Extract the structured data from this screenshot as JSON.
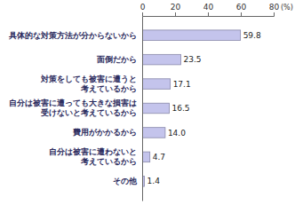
{
  "chart_data": {
    "type": "bar",
    "orientation": "horizontal",
    "categories": [
      "具体的な対策方法が分からないから",
      "面倒だから",
      "対策をしても被害に遭うと\n考えているから",
      "自分は被害に遭っても大きな損害は\n受けないと考えているから",
      "費用がかかるから",
      "自分は被害に遭わないと\n考えているから",
      "その他"
    ],
    "values": [
      59.8,
      23.5,
      17.1,
      16.5,
      14.0,
      4.7,
      1.4
    ],
    "value_labels": [
      "59.8",
      "23.5",
      "17.1",
      "16.5",
      "14.0",
      "4.7",
      "1.4"
    ],
    "color": "#c4c4ec",
    "x_label": "(%)",
    "xlim": [
      0,
      80
    ],
    "xticks": [
      0,
      20,
      40,
      60,
      80
    ],
    "grid": false,
    "data_labels": true
  }
}
